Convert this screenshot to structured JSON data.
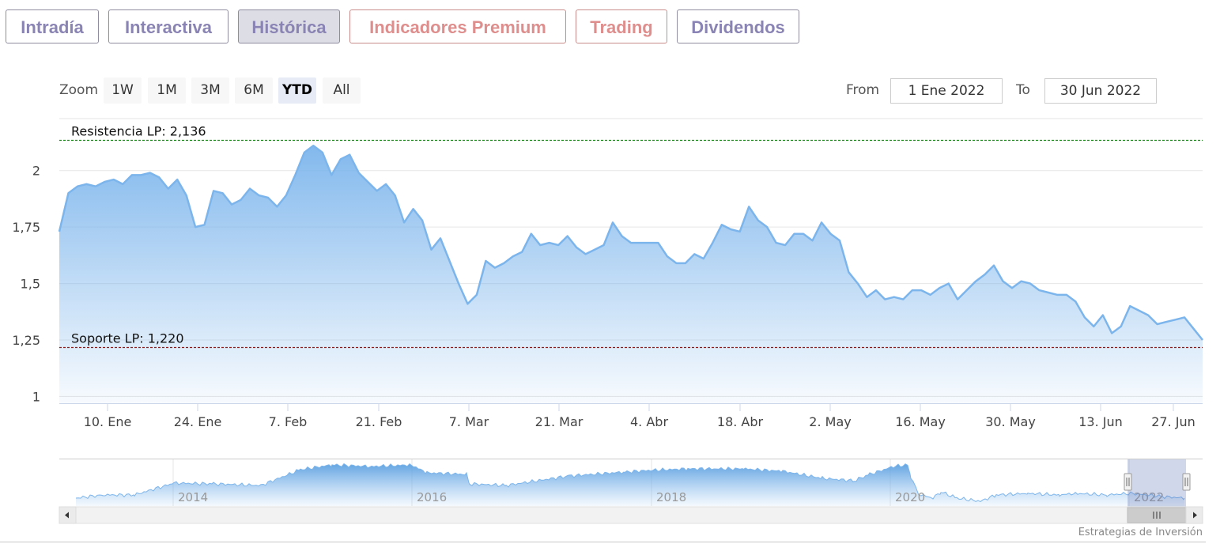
{
  "tabs": [
    {
      "label": "Intradía",
      "color": "#8a84b4"
    },
    {
      "label": "Interactiva",
      "color": "#8a84b4"
    },
    {
      "label": "Histórica",
      "color": "#8a84b4",
      "active": true
    },
    {
      "label": "Indicadores Premium",
      "color": "#de8e8c"
    },
    {
      "label": "Trading",
      "color": "#de8e8c"
    },
    {
      "label": "Dividendos",
      "color": "#8a84b4"
    }
  ],
  "zoom": {
    "label": "Zoom",
    "buttons": [
      "1W",
      "1M",
      "3M",
      "6M",
      "YTD",
      "All"
    ],
    "selected": "YTD"
  },
  "range": {
    "from_label": "From",
    "from_value": "1 Ene 2022",
    "to_label": "To",
    "to_value": "30 Jun 2022"
  },
  "chart_data": {
    "type": "area",
    "x_tick_labels": [
      "10. Ene",
      "24. Ene",
      "7. Feb",
      "21. Feb",
      "7. Mar",
      "21. Mar",
      "4. Abr",
      "18. Abr",
      "2. May",
      "16. May",
      "30. May",
      "13. Jun",
      "27. Jun"
    ],
    "y_tick_labels": [
      "1",
      "1,25",
      "1,5",
      "1,75",
      "2"
    ],
    "ylim": [
      0.97,
      2.23
    ],
    "series": [
      {
        "color": "#7cb5ec",
        "values": [
          1.73,
          1.9,
          1.93,
          1.94,
          1.93,
          1.95,
          1.96,
          1.94,
          1.98,
          1.98,
          1.99,
          1.97,
          1.92,
          1.96,
          1.89,
          1.75,
          1.76,
          1.91,
          1.9,
          1.85,
          1.87,
          1.92,
          1.89,
          1.88,
          1.84,
          1.89,
          1.98,
          2.08,
          2.11,
          2.08,
          1.98,
          2.05,
          2.07,
          1.99,
          1.95,
          1.91,
          1.94,
          1.89,
          1.77,
          1.83,
          1.78,
          1.65,
          1.7,
          1.6,
          1.5,
          1.41,
          1.45,
          1.6,
          1.57,
          1.59,
          1.62,
          1.64,
          1.72,
          1.67,
          1.68,
          1.67,
          1.71,
          1.66,
          1.63,
          1.65,
          1.67,
          1.77,
          1.71,
          1.68,
          1.68,
          1.68,
          1.68,
          1.62,
          1.59,
          1.59,
          1.63,
          1.61,
          1.68,
          1.76,
          1.74,
          1.73,
          1.84,
          1.78,
          1.75,
          1.68,
          1.67,
          1.72,
          1.72,
          1.69,
          1.77,
          1.72,
          1.69,
          1.55,
          1.5,
          1.44,
          1.47,
          1.43,
          1.44,
          1.43,
          1.47,
          1.47,
          1.45,
          1.48,
          1.5,
          1.43,
          1.47,
          1.51,
          1.54,
          1.58,
          1.51,
          1.48,
          1.51,
          1.5,
          1.47,
          1.46,
          1.45,
          1.45,
          1.42,
          1.35,
          1.31,
          1.36,
          1.28,
          1.31,
          1.4,
          1.38,
          1.36,
          1.32,
          1.33,
          1.34,
          1.35,
          1.3,
          1.25
        ]
      }
    ],
    "plot_lines": [
      {
        "label": "Resistencia LP: 2,136",
        "value": 2.136,
        "color": "#1a8a1a"
      },
      {
        "label": "Soporte LP: 1,220",
        "value": 1.22,
        "color": "#8b1a1a"
      }
    ],
    "navigator": {
      "year_labels": [
        "2014",
        "2016",
        "2018",
        "2020",
        "2022"
      ],
      "selection": "2022"
    },
    "credits": "Estrategias de Inversión"
  }
}
